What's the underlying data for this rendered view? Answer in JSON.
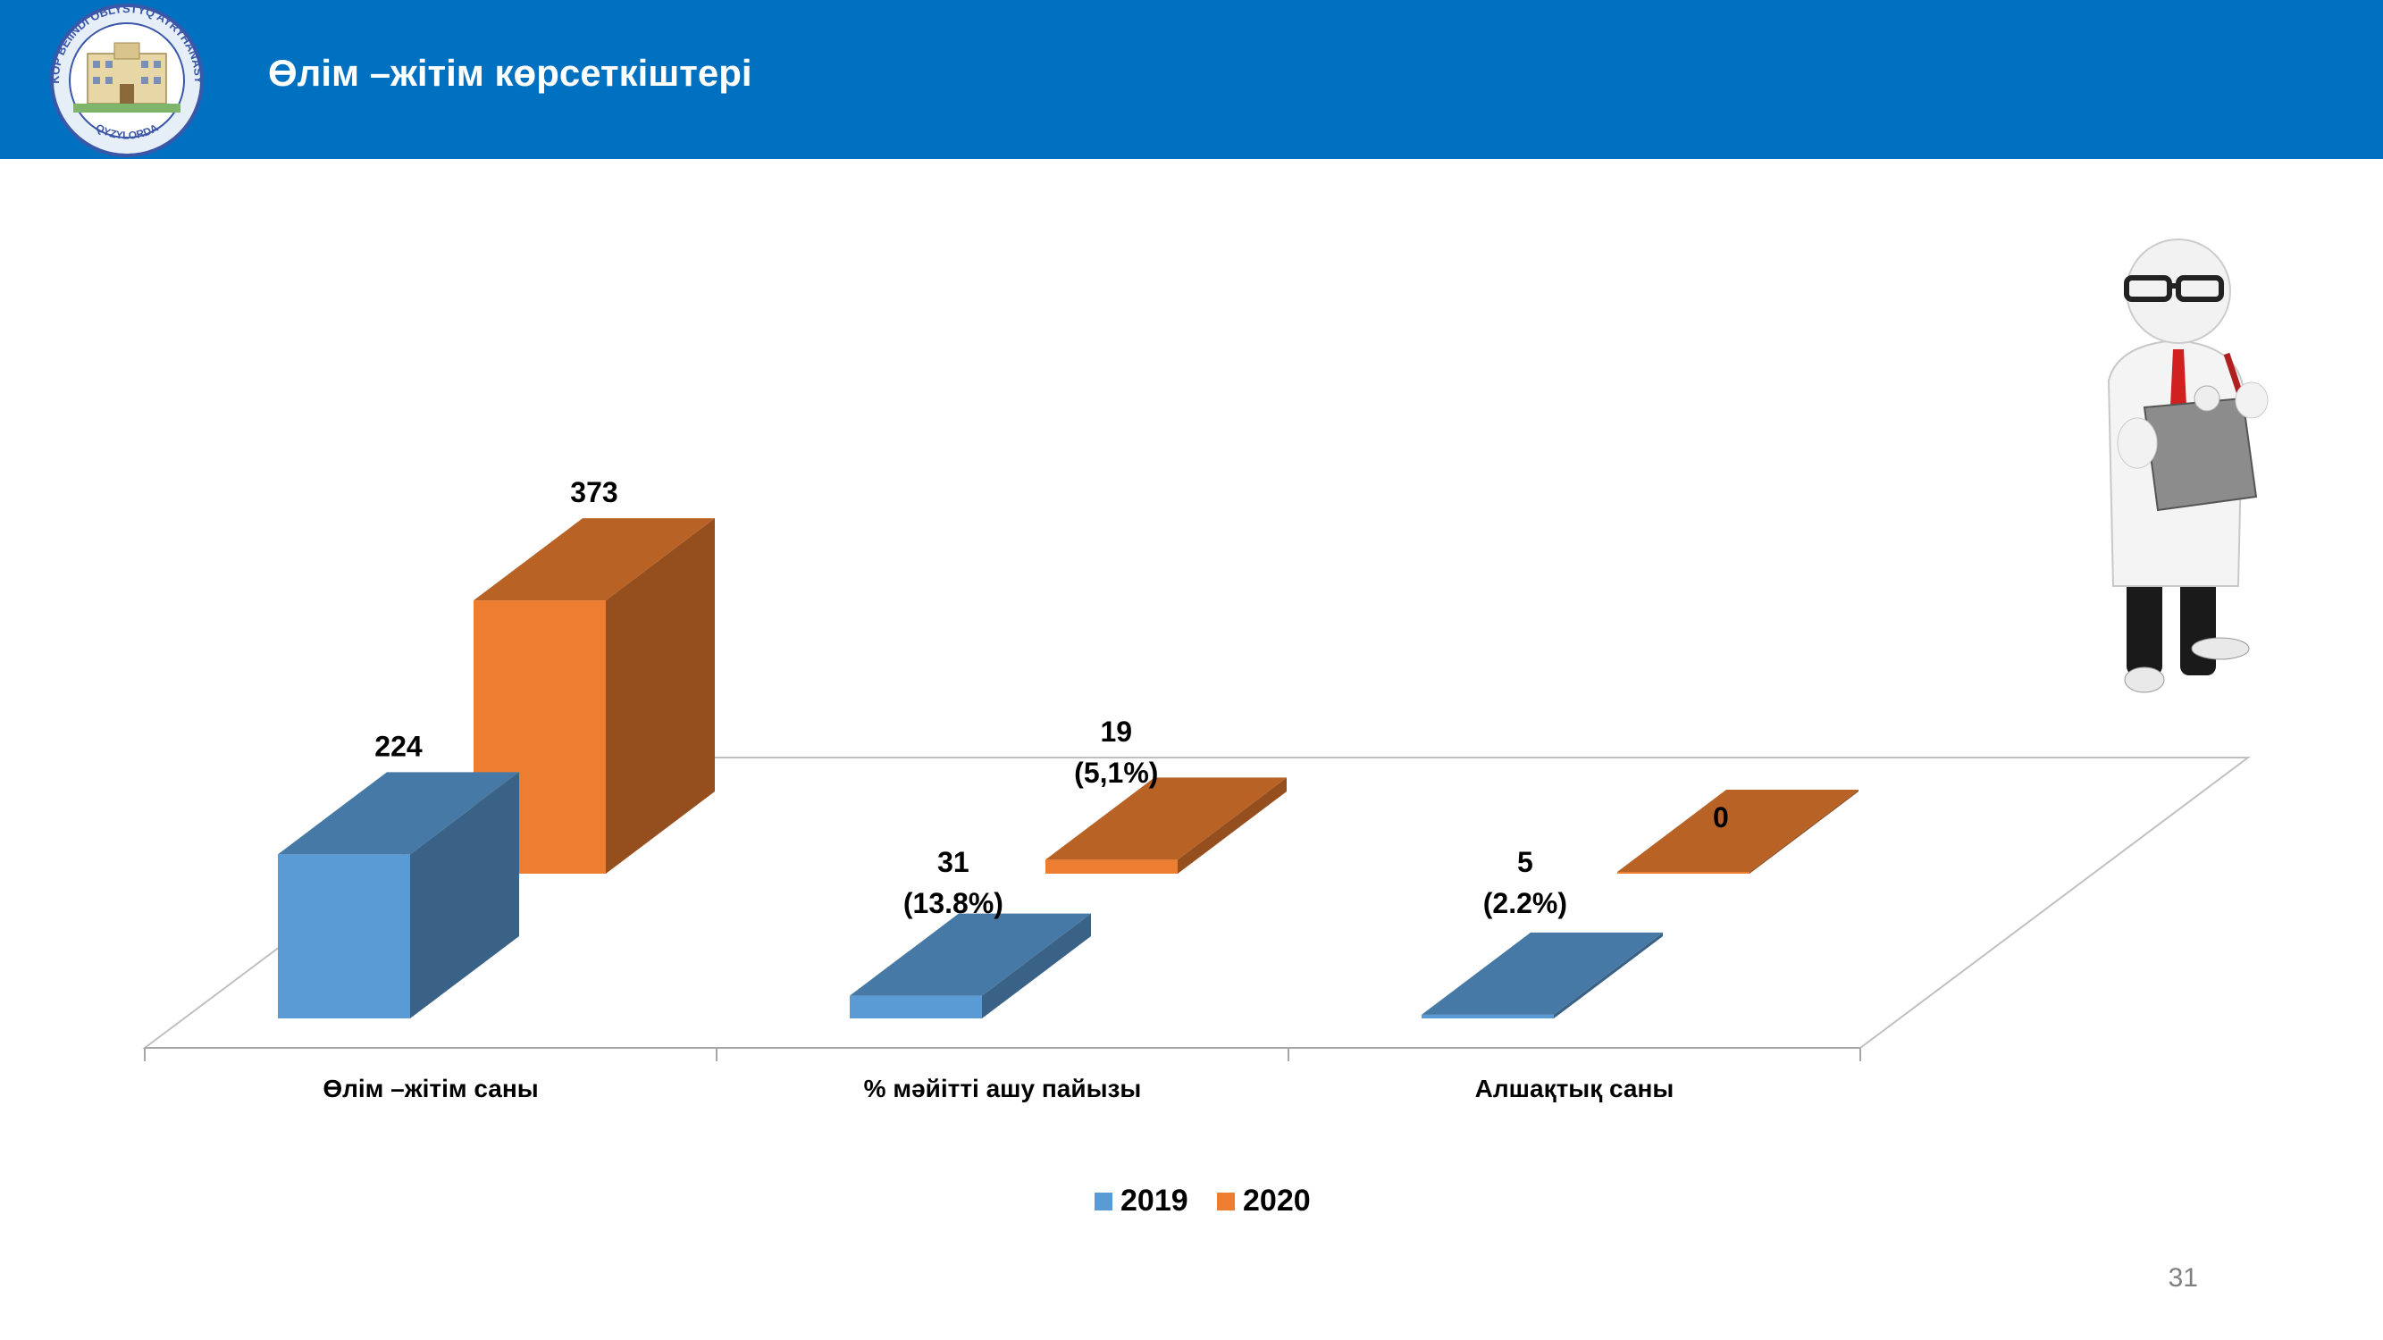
{
  "header": {
    "title": "Өлім –жітім көрсеткіштері",
    "logo_top_text": "KÓP BEIINDI OBLYSTYQ AYRYHANASY",
    "logo_bottom_text": "QYZYLORDA"
  },
  "colors": {
    "header_bg": "#0070c0",
    "series_2019": "#5b9bd5",
    "series_2020": "#ed7d31"
  },
  "chart_data": {
    "type": "bar",
    "style": "3d-clustered-column",
    "categories": [
      "Өлім –жітім саны",
      "% мәйітті ашу пайызы",
      "Алшақтық саны"
    ],
    "series": [
      {
        "name": "2019",
        "values": [
          224,
          31,
          5
        ],
        "labels": [
          [
            "224"
          ],
          [
            "31",
            "(13.8%)"
          ],
          [
            "5",
            "(2.2%)"
          ]
        ],
        "color": "#5b9bd5"
      },
      {
        "name": "2020",
        "values": [
          373,
          19,
          0
        ],
        "labels": [
          [
            "373"
          ],
          [
            "19",
            "(5,1%)"
          ],
          [
            "0"
          ]
        ],
        "color": "#ed7d31"
      }
    ],
    "legend": [
      "2019",
      "2020"
    ],
    "legend_position": "bottom",
    "grid": false
  },
  "page_number": "31"
}
